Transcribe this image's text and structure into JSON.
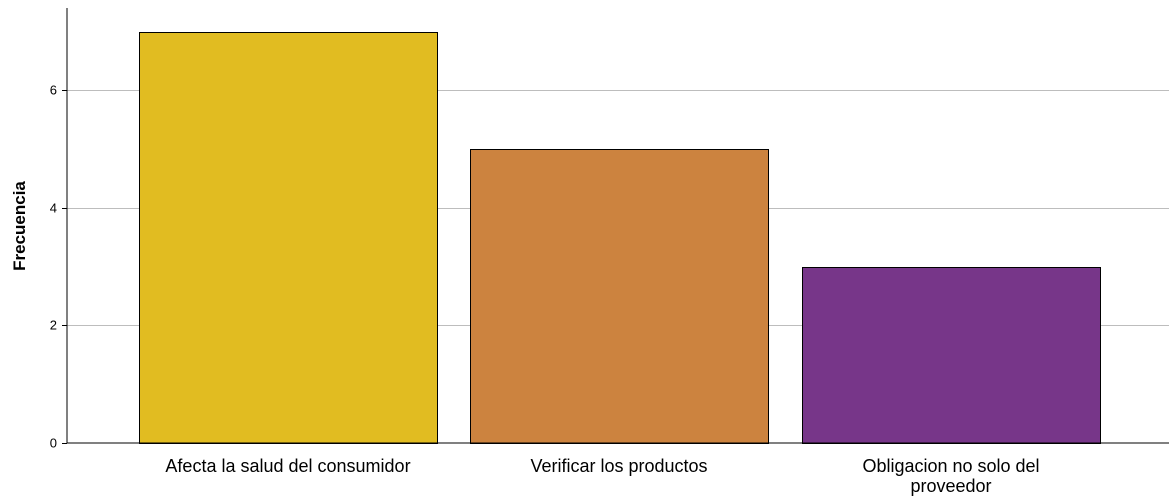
{
  "chart_data": {
    "type": "bar",
    "categories": [
      [
        "Afecta la salud del consumidor"
      ],
      [
        "Verificar los productos"
      ],
      [
        "Obligacion no solo del",
        "proveedor"
      ]
    ],
    "values": [
      7,
      5,
      3
    ],
    "colors": [
      "#e1bc21",
      "#cc833f",
      "#773689"
    ],
    "xlabel": "",
    "ylabel": "Frecuencia",
    "ylim": [
      0,
      7.4
    ],
    "yticks": [
      0,
      2,
      4,
      6
    ],
    "grid": true,
    "legend": "none"
  }
}
